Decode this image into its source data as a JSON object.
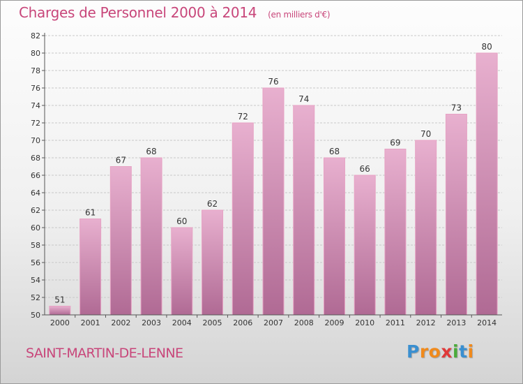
{
  "title": "Charges de Personnel 2000 à 2014",
  "subtitle": "(en milliers d'€)",
  "location": "SAINT-MARTIN-DE-LENNE",
  "logo": {
    "letters": [
      "P",
      "r",
      "o",
      "x",
      "i",
      "t",
      "i"
    ],
    "colors": [
      "#3a8fd0",
      "#f08a1c",
      "#f08a1c",
      "#e03a3a",
      "#4aab3a",
      "#3a8fd0",
      "#f08a1c"
    ]
  },
  "colors": {
    "bar_top": "#e8b0cf",
    "bar_bottom": "#b06a94",
    "bar_edge": "#e7a2c4",
    "grid": "#c8c8c8",
    "axis": "#555555"
  },
  "chart_data": {
    "type": "bar",
    "categories": [
      "2000",
      "2001",
      "2002",
      "2003",
      "2004",
      "2005",
      "2006",
      "2007",
      "2008",
      "2009",
      "2010",
      "2011",
      "2012",
      "2013",
      "2014"
    ],
    "values": [
      51,
      61,
      67,
      68,
      60,
      62,
      72,
      76,
      74,
      68,
      66,
      69,
      70,
      73,
      80
    ],
    "title": "Charges de Personnel 2000 à 2014",
    "subtitle": "(en milliers d'€)",
    "xlabel": "",
    "ylabel": "",
    "ylim": [
      50,
      82
    ],
    "yticks": [
      50,
      52,
      54,
      56,
      58,
      60,
      62,
      64,
      66,
      68,
      70,
      72,
      74,
      76,
      78,
      80,
      82
    ],
    "grid": true,
    "legend": "none"
  }
}
